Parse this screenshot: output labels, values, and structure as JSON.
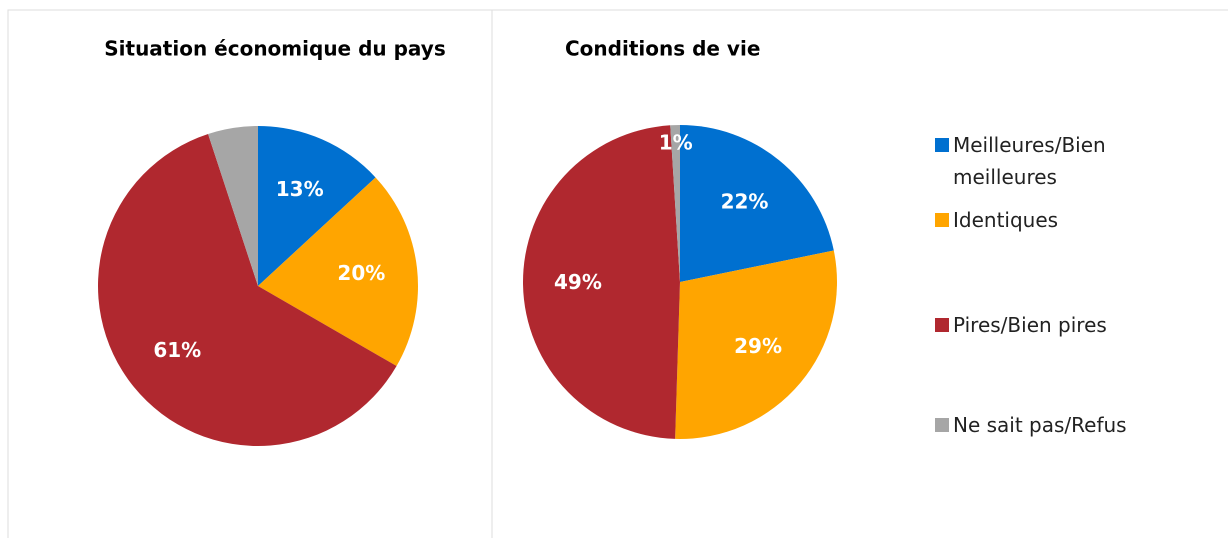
{
  "chart_data": [
    {
      "type": "pie",
      "title": "Situation économique du pays",
      "categories": [
        "Meilleures/Bien meilleures",
        "Identiques",
        "Pires/Bien pires",
        "Ne sait pas/Refus"
      ],
      "values": [
        13,
        20,
        61,
        5
      ],
      "value_labels": [
        "13%",
        "20%",
        "61%",
        null
      ],
      "colors": [
        "#0070d0",
        "#ffa500",
        "#b0282f",
        "#a6a6a6"
      ]
    },
    {
      "type": "pie",
      "title": "Conditions de vie",
      "categories": [
        "Meilleures/Bien meilleures",
        "Identiques",
        "Pires/Bien pires",
        "Ne sait pas/Refus"
      ],
      "values": [
        22,
        29,
        49,
        1
      ],
      "value_labels": [
        "22%",
        "29%",
        "49%",
        "1%"
      ],
      "colors": [
        "#0070d0",
        "#ffa500",
        "#b0282f",
        "#a6a6a6"
      ],
      "legend": "right"
    }
  ]
}
